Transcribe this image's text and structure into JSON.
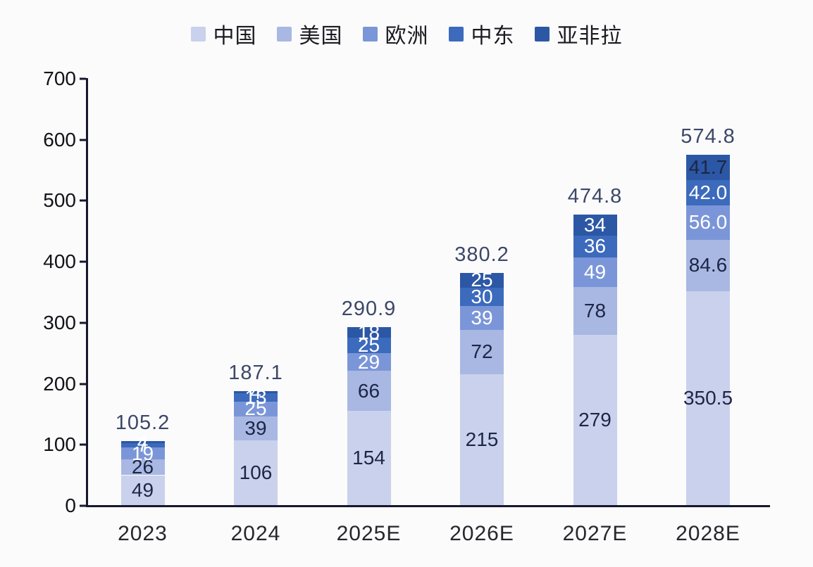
{
  "chart_data": {
    "type": "bar",
    "stacked": true,
    "title": "",
    "xlabel": "",
    "ylabel": "",
    "grid": false,
    "legend_position": "top",
    "categories": [
      "2023",
      "2024",
      "2025E",
      "2026E",
      "2027E",
      "2028E"
    ],
    "series": [
      {
        "key": "china",
        "name": "中国",
        "color": "#c9d1ec",
        "values": [
          49,
          106,
          154,
          215,
          279,
          350.5
        ],
        "labels": [
          "49",
          "106",
          "154",
          "215",
          "279",
          "350.5"
        ],
        "label_colors": [
          "dark",
          "dark",
          "dark",
          "dark",
          "dark",
          "dark"
        ]
      },
      {
        "key": "usa",
        "name": "美国",
        "color": "#a9b7e3",
        "values": [
          26,
          39,
          66,
          72,
          78,
          84.6
        ],
        "labels": [
          "26",
          "39",
          "66",
          "72",
          "78",
          "84.6"
        ],
        "label_colors": [
          "dark",
          "dark",
          "dark",
          "dark",
          "dark",
          "dark"
        ]
      },
      {
        "key": "europe",
        "name": "欧洲",
        "color": "#7b96d8",
        "values": [
          19,
          25,
          29,
          39,
          49,
          56
        ],
        "labels": [
          "19",
          "25",
          "29",
          "39",
          "49",
          "56.0"
        ],
        "label_colors": [
          "white",
          "white",
          "white",
          "white",
          "white",
          "white"
        ]
      },
      {
        "key": "middle-east",
        "name": "中东",
        "color": "#3c6abc",
        "values": [
          7,
          13,
          25,
          30,
          36,
          42
        ],
        "labels": [
          "7",
          "13",
          "25",
          "30",
          "36",
          "42.0"
        ],
        "label_colors": [
          "white",
          "white",
          "white",
          "white",
          "white",
          "white"
        ]
      },
      {
        "key": "asia-africa-latam",
        "name": "亚非拉",
        "color": "#2c57a5",
        "values": [
          4,
          4,
          18,
          25,
          34,
          41.7
        ],
        "labels": [
          "4",
          "4",
          "18",
          "25",
          "34",
          "41.7"
        ],
        "label_colors": [
          "white",
          "white",
          "white",
          "white",
          "white",
          "dark"
        ]
      }
    ],
    "totals": [
      "105.2",
      "187.1",
      "290.9",
      "380.2",
      "474.8",
      "574.8"
    ],
    "y_axis": {
      "min": 0,
      "max": 700,
      "tick_step": 100,
      "ticks": [
        "0",
        "100",
        "200",
        "300",
        "400",
        "500",
        "600",
        "700"
      ]
    }
  },
  "colors": {
    "dark_label": "#1c2645",
    "white_label": "#ffffff",
    "total_label": "#3c4769",
    "axis": "#17172e",
    "background": "#fbfbfb"
  }
}
